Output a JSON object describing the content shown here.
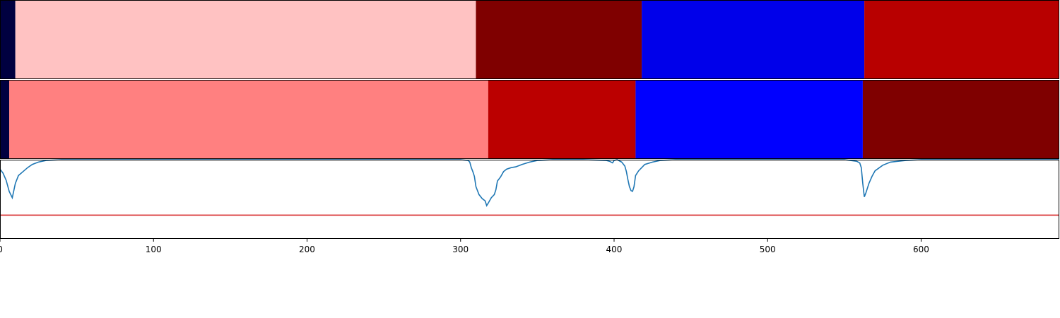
{
  "chart_data": [
    {
      "type": "heatmap",
      "panel": "segmentation-a",
      "xlim": [
        0,
        690
      ],
      "segments": [
        {
          "start": 0,
          "end": 10,
          "color": "#000040"
        },
        {
          "start": 10,
          "end": 310,
          "color": "#ffc2c2"
        },
        {
          "start": 310,
          "end": 418,
          "color": "#7f0000"
        },
        {
          "start": 418,
          "end": 563,
          "color": "#0000ea"
        },
        {
          "start": 563,
          "end": 690,
          "color": "#b80000"
        }
      ]
    },
    {
      "type": "heatmap",
      "panel": "segmentation-b",
      "xlim": [
        0,
        690
      ],
      "segments": [
        {
          "start": 0,
          "end": 6,
          "color": "#000040"
        },
        {
          "start": 6,
          "end": 318,
          "color": "#ff8080"
        },
        {
          "start": 318,
          "end": 414,
          "color": "#bb0000"
        },
        {
          "start": 414,
          "end": 562,
          "color": "#0000ff"
        },
        {
          "start": 562,
          "end": 690,
          "color": "#7f0000"
        }
      ]
    },
    {
      "type": "line",
      "panel": "score-curve",
      "xlim": [
        0,
        690
      ],
      "ylim": [
        0,
        1
      ],
      "xticks": [
        0,
        100,
        200,
        300,
        400,
        500,
        600
      ],
      "series": [
        {
          "color": "#1f77b4",
          "x": [
            0,
            2,
            4,
            6,
            8,
            10,
            12,
            15,
            18,
            21,
            25,
            30,
            40,
            60,
            100,
            200,
            300,
            305,
            306,
            307,
            308,
            309,
            310,
            312,
            314,
            316,
            317,
            318,
            320,
            322,
            323,
            324,
            326,
            328,
            330,
            333,
            336,
            340,
            345,
            350,
            360,
            380,
            395,
            397,
            399,
            400,
            402,
            405,
            407,
            408,
            409,
            410,
            411,
            412,
            413,
            414,
            416,
            418,
            420,
            425,
            430,
            440,
            460,
            500,
            550,
            558,
            560,
            561,
            562,
            563,
            564,
            566,
            568,
            570,
            575,
            580,
            590,
            600,
            620,
            650,
            690
          ],
          "y": [
            0.88,
            0.83,
            0.74,
            0.6,
            0.52,
            0.7,
            0.8,
            0.85,
            0.9,
            0.94,
            0.97,
            0.99,
            1.0,
            1.0,
            1.0,
            1.0,
            1.0,
            0.99,
            0.97,
            0.9,
            0.85,
            0.79,
            0.66,
            0.56,
            0.51,
            0.48,
            0.42,
            0.45,
            0.52,
            0.56,
            0.62,
            0.73,
            0.78,
            0.85,
            0.88,
            0.9,
            0.91,
            0.94,
            0.97,
            0.99,
            1.0,
            1.0,
            0.99,
            0.98,
            0.96,
            0.99,
            1.0,
            0.97,
            0.92,
            0.85,
            0.75,
            0.66,
            0.61,
            0.6,
            0.66,
            0.8,
            0.86,
            0.9,
            0.94,
            0.97,
            0.99,
            1.0,
            1.0,
            1.0,
            1.0,
            0.98,
            0.96,
            0.9,
            0.7,
            0.53,
            0.58,
            0.7,
            0.79,
            0.86,
            0.93,
            0.97,
            0.99,
            1.0,
            1.0,
            1.0,
            1.0
          ]
        },
        {
          "color": "#d62728",
          "x": [
            0,
            690
          ],
          "y": [
            0.3,
            0.3
          ]
        }
      ]
    }
  ]
}
